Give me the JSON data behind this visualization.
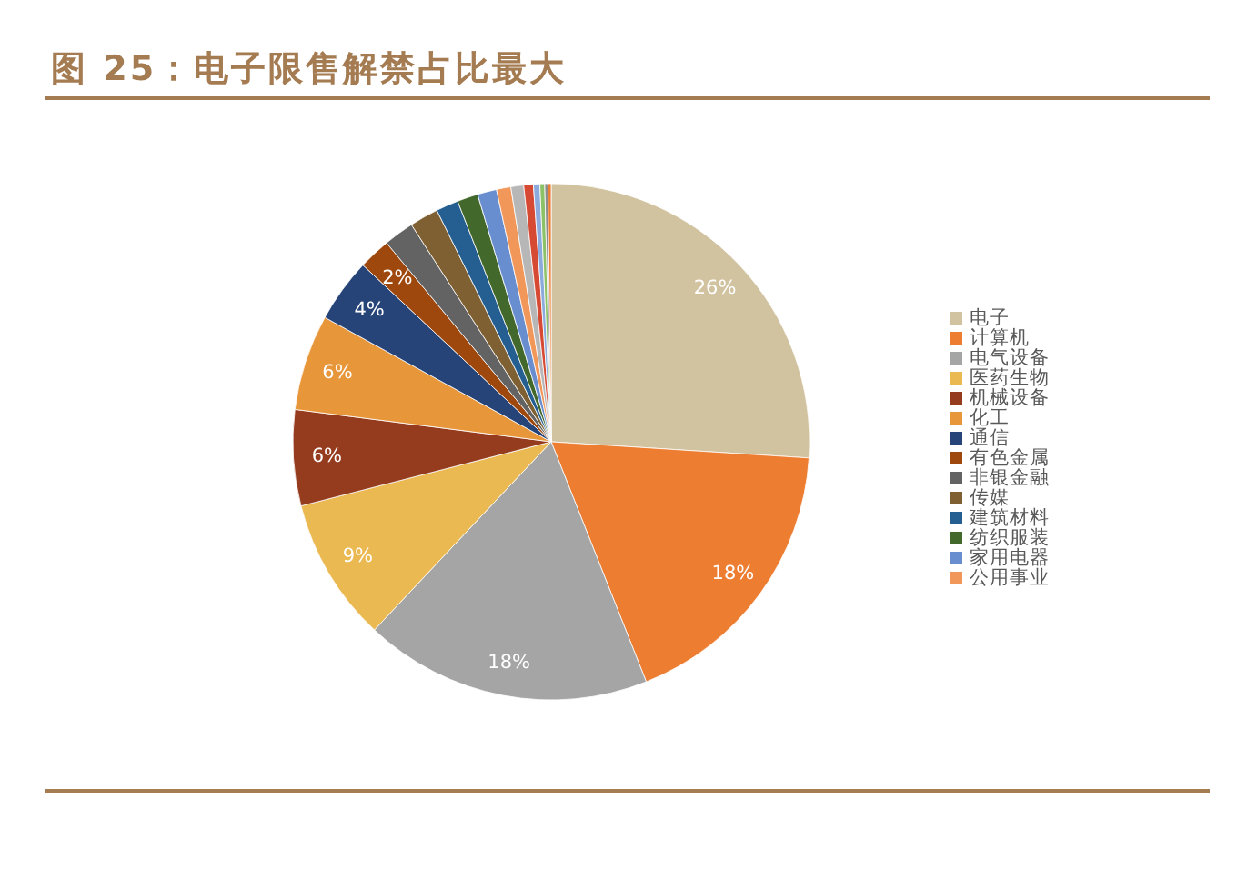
{
  "chart_data": {
    "type": "pie",
    "title": "图 25：电子限售解禁占比最大",
    "categories": [
      "电子",
      "计算机",
      "电气设备",
      "医药生物",
      "机械设备",
      "化工",
      "通信",
      "有色金属",
      "非银金融",
      "传媒",
      "建筑材料",
      "纺织服装",
      "家用电器",
      "公用事业",
      null,
      null,
      null,
      null,
      null,
      null
    ],
    "values": [
      26,
      18,
      18,
      9,
      6,
      6,
      4,
      2,
      1.9,
      1.8,
      1.4,
      1.3,
      1.2,
      0.9,
      0.8,
      0.6,
      0.4,
      0.3,
      0.2,
      0.2
    ],
    "colors": [
      "#d2c3a0",
      "#ed7d31",
      "#a5a5a5",
      "#ebb952",
      "#963c1e",
      "#e8963a",
      "#264478",
      "#9e480e",
      "#636363",
      "#7e6033",
      "#255e91",
      "#43682b",
      "#698ed0",
      "#f1975a",
      "#b7b7b7",
      "#d64933",
      "#8caadb",
      "#8cc168",
      "#8c8c8c",
      "#ed7d31"
    ],
    "value_labels": [
      "26%",
      "18%",
      "18%",
      "9%",
      "6%",
      "6%",
      "4%",
      "2%",
      null,
      null,
      null,
      null,
      null,
      null,
      null,
      null,
      null,
      null,
      null,
      null
    ],
    "legend": "right"
  }
}
